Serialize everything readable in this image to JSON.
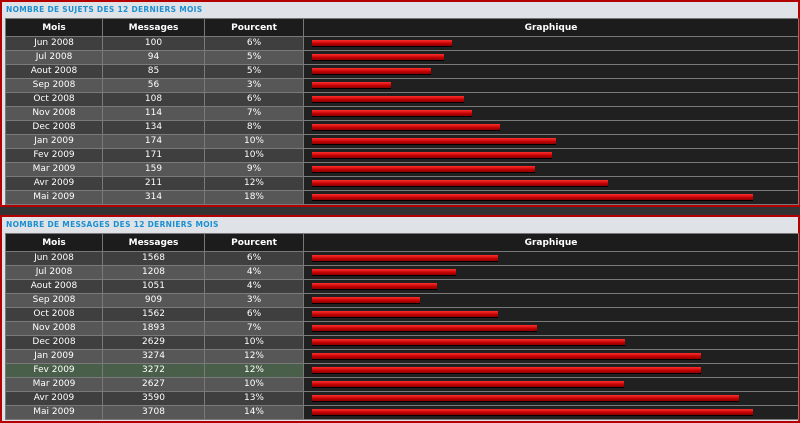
{
  "sections": [
    {
      "title": "NOMBRE DE SUJETS DES 12 DERNIERS MOIS",
      "headers": [
        "Mois",
        "Messages",
        "Pourcent",
        "Graphique"
      ],
      "rows": [
        {
          "mois": "Jun 2008",
          "messages": "100",
          "pourcent": "6%"
        },
        {
          "mois": "Jul 2008",
          "messages": "94",
          "pourcent": "5%"
        },
        {
          "mois": "Aout 2008",
          "messages": "85",
          "pourcent": "5%"
        },
        {
          "mois": "Sep 2008",
          "messages": "56",
          "pourcent": "3%"
        },
        {
          "mois": "Oct 2008",
          "messages": "108",
          "pourcent": "6%"
        },
        {
          "mois": "Nov 2008",
          "messages": "114",
          "pourcent": "7%"
        },
        {
          "mois": "Dec 2008",
          "messages": "134",
          "pourcent": "8%"
        },
        {
          "mois": "Jan 2009",
          "messages": "174",
          "pourcent": "10%"
        },
        {
          "mois": "Fev 2009",
          "messages": "171",
          "pourcent": "10%"
        },
        {
          "mois": "Mar 2009",
          "messages": "159",
          "pourcent": "9%"
        },
        {
          "mois": "Avr 2009",
          "messages": "211",
          "pourcent": "12%"
        },
        {
          "mois": "Mai 2009",
          "messages": "314",
          "pourcent": "18%"
        }
      ]
    },
    {
      "title": "NOMBRE DE MESSAGES DES 12 DERNIERS MOIS",
      "headers": [
        "Mois",
        "Messages",
        "Pourcent",
        "Graphique"
      ],
      "rows": [
        {
          "mois": "Jun 2008",
          "messages": "1568",
          "pourcent": "6%"
        },
        {
          "mois": "Jul 2008",
          "messages": "1208",
          "pourcent": "4%"
        },
        {
          "mois": "Aout 2008",
          "messages": "1051",
          "pourcent": "4%"
        },
        {
          "mois": "Sep 2008",
          "messages": "909",
          "pourcent": "3%"
        },
        {
          "mois": "Oct 2008",
          "messages": "1562",
          "pourcent": "6%"
        },
        {
          "mois": "Nov 2008",
          "messages": "1893",
          "pourcent": "7%"
        },
        {
          "mois": "Dec 2008",
          "messages": "2629",
          "pourcent": "10%"
        },
        {
          "mois": "Jan 2009",
          "messages": "3274",
          "pourcent": "12%"
        },
        {
          "mois": "Fev 2009",
          "messages": "3272",
          "pourcent": "12%",
          "highlighted": true
        },
        {
          "mois": "Mar 2009",
          "messages": "2627",
          "pourcent": "10%"
        },
        {
          "mois": "Avr 2009",
          "messages": "3590",
          "pourcent": "13%"
        },
        {
          "mois": "Mai 2009",
          "messages": "3708",
          "pourcent": "14%"
        }
      ]
    }
  ],
  "colors": {
    "bar": "#e00000",
    "title": "#1a8fd1",
    "border": "#b30000"
  }
}
